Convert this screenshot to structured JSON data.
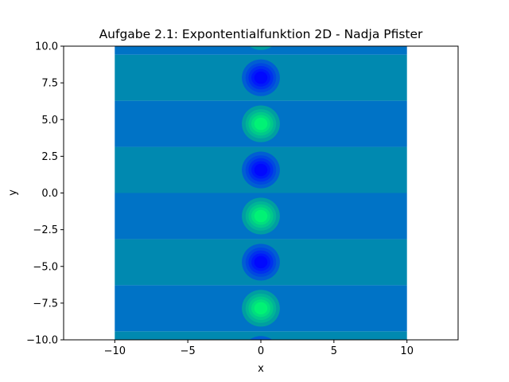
{
  "chart_data": {
    "type": "heatmap",
    "title": "Aufgabe 2.1: Expontentialfunktion 2D - Nadja Pfister",
    "xlabel": "x",
    "ylabel": "y",
    "xlim": [
      -13.5,
      13.5
    ],
    "ylim": [
      -10,
      10
    ],
    "data_x_range": [
      -10,
      10
    ],
    "data_y_range": [
      -10,
      10
    ],
    "x_ticks": [
      -10,
      -5,
      0,
      5,
      10
    ],
    "x_tick_labels": [
      "−10",
      "−5",
      "0",
      "5",
      "10"
    ],
    "y_ticks": [
      -10,
      -7.5,
      -5,
      -2.5,
      0,
      2.5,
      5,
      7.5,
      10
    ],
    "y_tick_labels": [
      "−10.0",
      "−7.5",
      "−5.0",
      "−2.5",
      "0.0",
      "2.5",
      "5.0",
      "7.5",
      "10.0"
    ],
    "grid": false,
    "legend": false,
    "colormap": "winter",
    "bands": [
      {
        "y_from": -10.0,
        "y_to": -9.42,
        "color": "#0089b0"
      },
      {
        "y_from": -9.42,
        "y_to": -6.28,
        "color": "#0073c6"
      },
      {
        "y_from": -6.28,
        "y_to": -3.14,
        "color": "#0089b0"
      },
      {
        "y_from": -3.14,
        "y_to": 0.0,
        "color": "#0073c6"
      },
      {
        "y_from": 0.0,
        "y_to": 3.14,
        "color": "#0089b0"
      },
      {
        "y_from": 3.14,
        "y_to": 6.28,
        "color": "#0073c6"
      },
      {
        "y_from": 6.28,
        "y_to": 9.42,
        "color": "#0089b0"
      },
      {
        "y_from": 9.42,
        "y_to": 10.0,
        "color": "#0073c6"
      }
    ],
    "extrema": [
      {
        "x": 0,
        "y": -10.99,
        "kind": "min"
      },
      {
        "x": 0,
        "y": -7.85,
        "kind": "max"
      },
      {
        "x": 0,
        "y": -4.71,
        "kind": "min"
      },
      {
        "x": 0,
        "y": -1.57,
        "kind": "max"
      },
      {
        "x": 0,
        "y": 1.57,
        "kind": "min"
      },
      {
        "x": 0,
        "y": 4.71,
        "kind": "max"
      },
      {
        "x": 0,
        "y": 7.85,
        "kind": "min"
      },
      {
        "x": 0,
        "y": 10.99,
        "kind": "max"
      }
    ],
    "colors": {
      "frame": "#000000",
      "max_ramp": [
        "#009ea1",
        "#00b497",
        "#00c98a",
        "#00de7e",
        "#00f275"
      ],
      "min_ramp": [
        "#005ed3",
        "#0048e0",
        "#0030ee",
        "#001afa",
        "#0008ff"
      ]
    }
  }
}
